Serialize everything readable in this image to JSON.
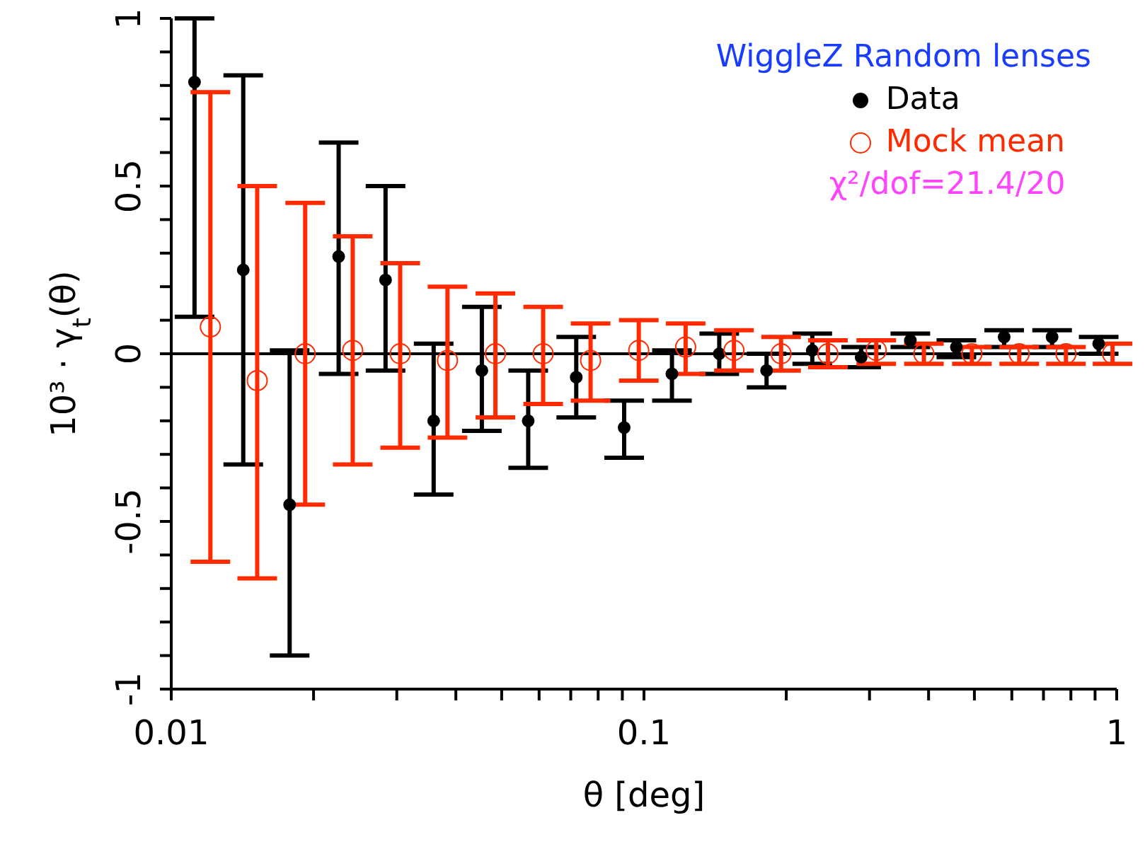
{
  "chart_data": {
    "type": "scatter",
    "xlabel": "θ [deg]",
    "ylabel": "10³ · γ$_{t}$(θ)",
    "legend_title": "WiggleZ Random lenses",
    "legend": "top right",
    "log": "x",
    "annotations": [
      "χ²/dof=21.4/20"
    ],
    "xlim": [
      0.01,
      1
    ],
    "xticks": [
      0.01,
      {
        "value": 0.02,
        "label": null
      },
      {
        "value": 0.03,
        "label": null
      },
      {
        "value": 0.04,
        "label": null
      },
      {
        "value": 0.05,
        "label": null
      },
      {
        "value": 0.06,
        "label": null
      },
      {
        "value": 0.07,
        "label": null
      },
      {
        "value": 0.08,
        "label": null
      },
      {
        "value": 0.09,
        "label": null
      },
      0.1,
      {
        "value": 0.2,
        "label": null
      },
      {
        "value": 0.3,
        "label": null
      },
      {
        "value": 0.4,
        "label": null
      },
      {
        "value": 0.5,
        "label": null
      },
      {
        "value": 0.6,
        "label": null
      },
      {
        "value": 0.7,
        "label": null
      },
      {
        "value": 0.8,
        "label": null
      },
      {
        "value": 0.9,
        "label": null
      },
      1
    ],
    "ylim": [
      -1,
      1
    ],
    "yticks": [
      -1,
      {
        "value": -0.9,
        "label": null
      },
      {
        "value": -0.8,
        "label": null
      },
      {
        "value": -0.7,
        "label": null
      },
      {
        "value": -0.6,
        "label": null
      },
      -0.5,
      {
        "value": -0.4,
        "label": null
      },
      {
        "value": -0.3,
        "label": null
      },
      {
        "value": -0.2,
        "label": null
      },
      {
        "value": -0.1,
        "label": null
      },
      0,
      {
        "value": 0.1,
        "label": null
      },
      {
        "value": 0.2,
        "label": null
      },
      {
        "value": 0.3,
        "label": null
      },
      {
        "value": 0.4,
        "label": null
      },
      0.5,
      {
        "value": 0.6,
        "label": null
      },
      {
        "value": 0.7,
        "label": null
      },
      {
        "value": 0.8,
        "label": null
      },
      {
        "value": 0.9,
        "label": null
      },
      1
    ],
    "ref_lines": [
      {
        "axis": "y",
        "value": 0,
        "color": "#000000"
      }
    ],
    "marker": "circle",
    "series": [
      {
        "name": "Data",
        "color": "#000000",
        "x": [
          0.0112,
          0.0142,
          0.0178,
          0.0226,
          0.0284,
          0.0359,
          0.0454,
          0.0569,
          0.0719,
          0.0908,
          0.1146,
          0.1443,
          0.1817,
          0.227,
          0.288,
          0.366,
          0.458,
          0.578,
          0.73,
          0.916
        ],
        "values": [
          0.81,
          0.25,
          -0.45,
          0.29,
          0.22,
          -0.2,
          -0.05,
          -0.2,
          -0.07,
          -0.22,
          -0.06,
          0,
          -0.05,
          0.01,
          -0.01,
          0.04,
          0.02,
          0.05,
          0.05,
          0.03
        ],
        "errors": [
          [
            0.11,
            1
          ],
          [
            -0.33,
            0.83
          ],
          [
            -0.9,
            0.01
          ],
          [
            -0.06,
            0.63
          ],
          [
            -0.05,
            0.5
          ],
          [
            -0.42,
            0.03
          ],
          [
            -0.23,
            0.14
          ],
          [
            -0.34,
            -0.05
          ],
          [
            -0.19,
            0.05
          ],
          [
            -0.31,
            -0.14
          ],
          [
            -0.14,
            0.01
          ],
          [
            -0.06,
            0.06
          ],
          [
            -0.1,
            0
          ],
          [
            -0.03,
            0.06
          ],
          [
            -0.04,
            0.02
          ],
          [
            0.02,
            0.06
          ],
          [
            -0.01,
            0.04
          ],
          [
            0.02,
            0.07
          ],
          [
            0.02,
            0.07
          ],
          [
            0,
            0.05
          ]
        ]
      },
      {
        "name": "Mock mean",
        "color": "#ff2a00",
        "x": [
          0.0121,
          0.0152,
          0.0192,
          0.0242,
          0.0305,
          0.0384,
          0.0485,
          0.0612,
          0.0771,
          0.0975,
          0.1225,
          0.155,
          0.195,
          0.245,
          0.31,
          0.391,
          0.494,
          0.622,
          0.781,
          0.98
        ],
        "values": [
          0.08,
          -0.08,
          0,
          0.01,
          0,
          -0.02,
          0,
          0,
          -0.02,
          0.01,
          0.02,
          0.01,
          0,
          0,
          0.01,
          0,
          0,
          0,
          0,
          0
        ],
        "errors": [
          [
            -0.62,
            0.78
          ],
          [
            -0.67,
            0.5
          ],
          [
            -0.45,
            0.45
          ],
          [
            -0.33,
            0.35
          ],
          [
            -0.28,
            0.27
          ],
          [
            -0.25,
            0.2
          ],
          [
            -0.19,
            0.18
          ],
          [
            -0.15,
            0.14
          ],
          [
            -0.14,
            0.09
          ],
          [
            -0.08,
            0.1
          ],
          [
            -0.06,
            0.09
          ],
          [
            -0.05,
            0.07
          ],
          [
            -0.05,
            0.05
          ],
          [
            -0.04,
            0.04
          ],
          [
            -0.03,
            0.04
          ],
          [
            -0.03,
            0.03
          ],
          [
            -0.03,
            0.02
          ],
          [
            -0.03,
            0.02
          ],
          [
            -0.03,
            0.02
          ],
          [
            -0.03,
            0.03
          ]
        ]
      }
    ]
  }
}
